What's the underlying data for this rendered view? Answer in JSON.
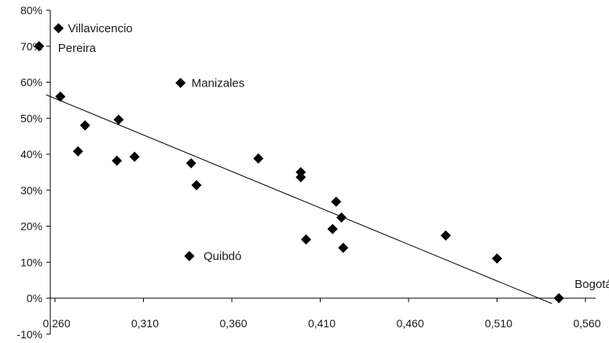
{
  "chart_data": {
    "type": "scatter",
    "title": "",
    "xlabel": "",
    "ylabel": "",
    "xlim": [
      0.25,
      0.56
    ],
    "ylim": [
      -10,
      80
    ],
    "x_ticks": [
      "0,260",
      "0,310",
      "0,360",
      "0,410",
      "0,460",
      "0,510",
      "0,560"
    ],
    "y_ticks": [
      "-10%",
      "0%",
      "10%",
      "20%",
      "30%",
      "40%",
      "50%",
      "60%",
      "70%",
      "80%"
    ],
    "grid": false,
    "legend": "none",
    "marker_color": "#000000",
    "series": [
      {
        "points": [
          {
            "x": 0.251,
            "y": 70.0,
            "label": "Pereira"
          },
          {
            "x": 0.262,
            "y": 75.0,
            "label": "Villavicencio"
          },
          {
            "x": 0.263,
            "y": 56.0
          },
          {
            "x": 0.273,
            "y": 40.8
          },
          {
            "x": 0.277,
            "y": 48.0
          },
          {
            "x": 0.295,
            "y": 38.2
          },
          {
            "x": 0.296,
            "y": 49.6
          },
          {
            "x": 0.305,
            "y": 39.3
          },
          {
            "x": 0.331,
            "y": 59.8,
            "label": "Manizales"
          },
          {
            "x": 0.336,
            "y": 11.7,
            "label": "Quibdó"
          },
          {
            "x": 0.337,
            "y": 37.5
          },
          {
            "x": 0.34,
            "y": 31.4
          },
          {
            "x": 0.375,
            "y": 38.8
          },
          {
            "x": 0.399,
            "y": 35.0
          },
          {
            "x": 0.399,
            "y": 33.6
          },
          {
            "x": 0.402,
            "y": 16.3
          },
          {
            "x": 0.417,
            "y": 19.2
          },
          {
            "x": 0.419,
            "y": 26.8
          },
          {
            "x": 0.422,
            "y": 22.4
          },
          {
            "x": 0.423,
            "y": 14.0
          },
          {
            "x": 0.481,
            "y": 17.4
          },
          {
            "x": 0.51,
            "y": 11.0
          },
          {
            "x": 0.545,
            "y": 0.0,
            "label": "Bogotá"
          }
        ]
      }
    ],
    "trendline": {
      "x": [
        0.255,
        0.541
      ],
      "y": [
        56.5,
        -1.5
      ]
    }
  }
}
